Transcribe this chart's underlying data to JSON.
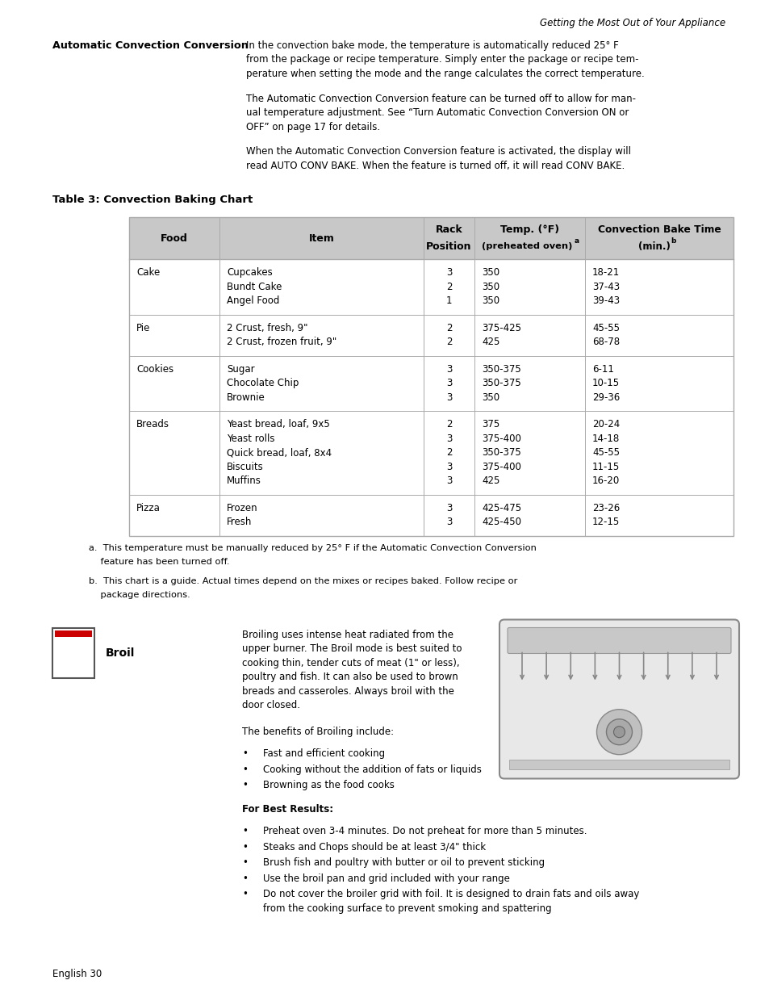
{
  "page_header": "Getting the Most Out of Your Appliance",
  "section1_label": "Automatic Convection Conversion",
  "section1_para1_lines": [
    "In the convection bake mode, the temperature is automatically reduced 25° F",
    "from the package or recipe temperature. Simply enter the package or recipe tem-",
    "perature when setting the mode and the range calculates the correct temperature."
  ],
  "section1_para2_lines": [
    "The Automatic Convection Conversion feature can be turned off to allow for man-",
    "ual temperature adjustment. See “Turn Automatic Convection Conversion ON or",
    "OFF” on page 17 for details."
  ],
  "section1_para3_lines": [
    "When the Automatic Convection Conversion feature is activated, the display will",
    "read AUTO CONV BAKE. When the feature is turned off, it will read CONV BAKE."
  ],
  "table_title": "Table 3: Convection Baking Chart",
  "table_data": [
    [
      "Cake",
      "Cupcakes\nBundt Cake\nAngel Food",
      "3\n2\n1",
      "350\n350\n350",
      "18-21\n37-43\n39-43"
    ],
    [
      "Pie",
      "2 Crust, fresh, 9\"\n2 Crust, frozen fruit, 9\"",
      "2\n2",
      "375-425\n425",
      "45-55\n68-78"
    ],
    [
      "Cookies",
      "Sugar\nChocolate Chip\nBrownie",
      "3\n3\n3",
      "350-375\n350-375\n350",
      "6-11\n10-15\n29-36"
    ],
    [
      "Breads",
      "Yeast bread, loaf, 9x5\nYeast rolls\nQuick bread, loaf, 8x4\nBiscuits\nMuffins",
      "2\n3\n2\n3\n3",
      "375\n375-400\n350-375\n375-400\n425",
      "20-24\n14-18\n45-55\n11-15\n16-20"
    ],
    [
      "Pizza",
      "Frozen\nFresh",
      "3\n3",
      "425-475\n425-450",
      "23-26\n12-15"
    ]
  ],
  "footnote_a_lines": [
    "a.  This temperature must be manually reduced by 25° F if the Automatic Convection Conversion",
    "    feature has been turned off."
  ],
  "footnote_b_lines": [
    "b.  This chart is a guide. Actual times depend on the mixes or recipes baked. Follow recipe or",
    "    package directions."
  ],
  "broil_label": "Broil",
  "broil_para1_lines": [
    "Broiling uses intense heat radiated from the",
    "upper burner. The Broil mode is best suited to",
    "cooking thin, tender cuts of meat (1\" or less),",
    "poultry and fish. It can also be used to brown",
    "breads and casseroles. Always broil with the",
    "door closed."
  ],
  "broil_para2": "The benefits of Broiling include:",
  "broil_bullets1": [
    "Fast and efficient cooking",
    "Cooking without the addition of fats or liquids",
    "Browning as the food cooks"
  ],
  "broil_best_results": "For Best Results:",
  "broil_bullets2": [
    "Preheat oven 3-4 minutes. Do not preheat for more than 5 minutes.",
    "Steaks and Chops should be at least 3/4\" thick",
    "Brush fish and poultry with butter or oil to prevent sticking",
    "Use the broil pan and grid included with your range",
    [
      "Do not cover the broiler grid with foil. It is designed to drain fats and oils away",
      "from the cooking surface to prevent smoking and spattering"
    ]
  ],
  "page_footer": "English 30",
  "bg_color": "#ffffff",
  "text_color": "#000000",
  "border_color": "#aaaaaa",
  "table_header_bg": "#c8c8c8",
  "font_size_body": 8.5,
  "font_size_header": 8.8,
  "font_size_small": 8.0
}
